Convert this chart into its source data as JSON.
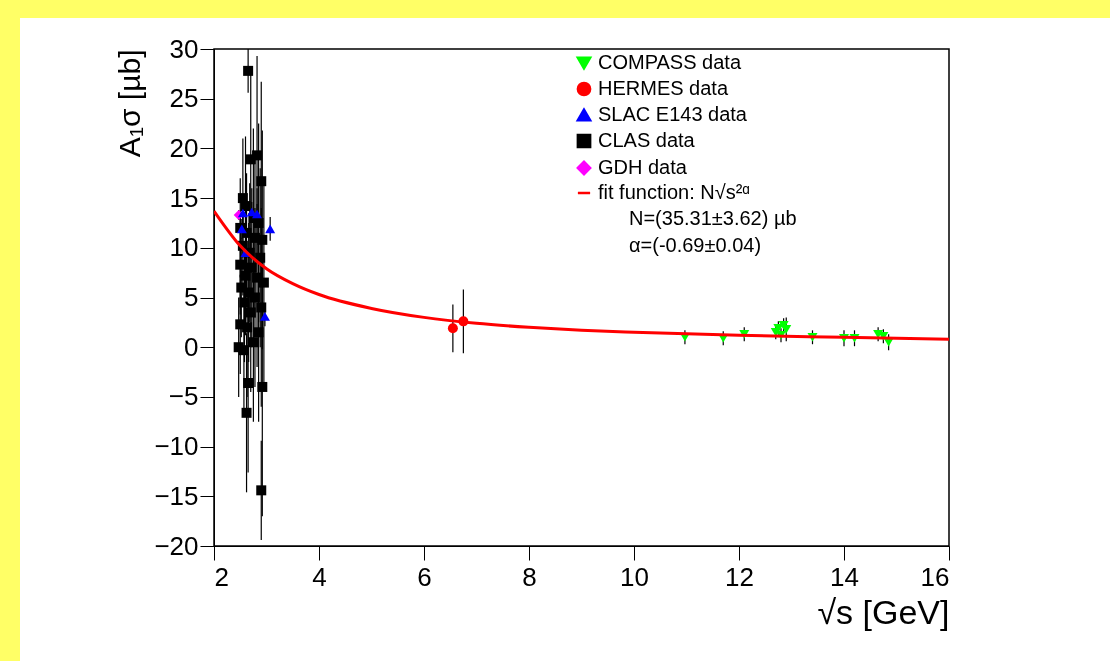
{
  "chart_data": {
    "type": "scatter",
    "xlabel": "√s [GeV]",
    "ylabel": "A₁σ [µb]",
    "xlim": [
      2,
      16
    ],
    "xticks": [
      2,
      4,
      6,
      8,
      10,
      12,
      14,
      16
    ],
    "ylim": [
      -20,
      30
    ],
    "yticks": [
      -20,
      -15,
      -10,
      -5,
      0,
      5,
      10,
      15,
      20,
      25,
      30
    ],
    "grid": false,
    "legend": "top right",
    "series": [
      {
        "name": "COMPASS data",
        "color": "#00ff00",
        "marker": "triangle-down",
        "x": [
          10.97,
          11.7,
          12.1,
          12.7,
          12.75,
          12.8,
          12.85,
          12.9,
          13.4,
          14.0,
          14.2,
          14.65,
          14.75,
          14.85
        ],
        "values": [
          1.0,
          0.9,
          1.3,
          1.5,
          1.9,
          1.2,
          2.2,
          1.8,
          1.0,
          0.9,
          0.9,
          1.3,
          1.1,
          0.5
        ],
        "errors": [
          0.7,
          0.7,
          0.7,
          0.7,
          0.7,
          0.7,
          0.7,
          1.2,
          0.7,
          0.8,
          0.8,
          0.7,
          0.7,
          0.8
        ]
      },
      {
        "name": "HERMES data",
        "color": "#ff0000",
        "marker": "circle",
        "x": [
          6.55,
          6.75
        ],
        "values": [
          1.9,
          2.6
        ],
        "errors": [
          2.4,
          3.2
        ]
      },
      {
        "name": "SLAC E143 data",
        "color": "#0000ff",
        "marker": "triangle",
        "x": [
          2.55,
          2.72,
          2.82,
          2.53,
          3.07,
          2.6,
          2.97
        ],
        "values": [
          13.5,
          13.6,
          13.4,
          11.9,
          11.9,
          9.5,
          3.1
        ],
        "errors": [
          1.0,
          1.0,
          1.0,
          1.0,
          1.2,
          1.0,
          1.0
        ]
      },
      {
        "name": "CLAS data",
        "color": "#000000",
        "marker": "square",
        "x": [
          2.65,
          2.82,
          2.7,
          2.9,
          2.55,
          2.6,
          2.75,
          2.85,
          2.5,
          2.62,
          2.78,
          2.92,
          2.55,
          2.68,
          2.88,
          2.5,
          2.72,
          2.6,
          2.82,
          2.95,
          2.52,
          2.66,
          2.78,
          2.58,
          2.9,
          2.7,
          2.5,
          2.63,
          2.85,
          2.47,
          2.57,
          2.75,
          2.92,
          2.65,
          2.62,
          2.9
        ],
        "values": [
          27.8,
          19.3,
          18.9,
          16.7,
          15.0,
          14.2,
          13.0,
          12.5,
          12.0,
          11.5,
          11.0,
          10.8,
          10.2,
          9.5,
          9.0,
          8.3,
          8.0,
          7.2,
          7.0,
          6.5,
          6.0,
          5.5,
          5.0,
          4.5,
          4.0,
          3.5,
          2.3,
          2.0,
          1.5,
          0.0,
          -0.3,
          0.5,
          -4.0,
          -3.6,
          -6.6,
          -14.4
        ],
        "errors": [
          2.2,
          10,
          9,
          10,
          6,
          7,
          9,
          10,
          5,
          6,
          8,
          11,
          5,
          7,
          9,
          5,
          8,
          6,
          9,
          10,
          5,
          7,
          9,
          6,
          10,
          8,
          5,
          7,
          9,
          5,
          6,
          8,
          13,
          9,
          8,
          5
        ]
      },
      {
        "name": "GDH data",
        "color": "#ff00ff",
        "marker": "diamond",
        "x": [
          2.47
        ],
        "values": [
          13.3
        ],
        "errors": [
          0.5
        ]
      },
      {
        "name": "fit function: N√s²ᵅ",
        "type": "line",
        "color": "#ff0000",
        "marker": "none",
        "x": [
          2.0,
          2.5,
          3.0,
          3.5,
          4.0,
          5.0,
          6.0,
          7.0,
          8.0,
          9.0,
          10.0,
          12.0,
          14.0,
          16.0
        ],
        "values": [
          13.7,
          10.2,
          7.9,
          6.4,
          5.3,
          3.9,
          3.0,
          2.4,
          2.0,
          1.7,
          1.5,
          1.2,
          1.0,
          0.8
        ]
      }
    ],
    "annotations": [
      "N=(35.31±3.62) µb",
      "α=(-0.69±0.04)"
    ]
  }
}
